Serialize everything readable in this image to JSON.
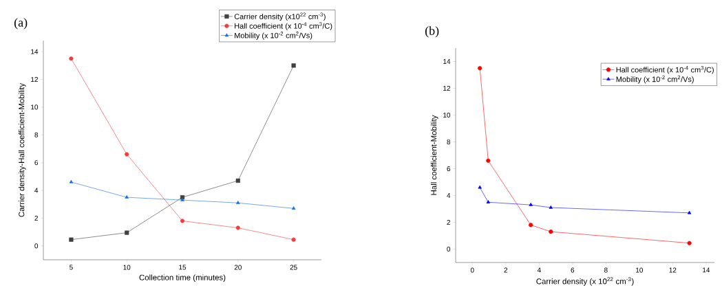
{
  "chart_data": [
    {
      "type": "line",
      "title": "(a)",
      "xlabel": "Collection time (minutes)",
      "ylabel": "Carrier density-Hall coefficient-Mobility",
      "x": [
        5,
        10,
        15,
        20,
        25
      ],
      "series": [
        {
          "name": "Carrier density (x10$^{22}$ cm$^{-3}$)",
          "color": "#404040",
          "marker": "square",
          "values": [
            0.45,
            0.95,
            3.5,
            4.7,
            13
          ]
        },
        {
          "name": "Hall coefficient (x 10$^{-4}$ cm$^{3}$/C)",
          "color": "#f03c3c",
          "marker": "circle",
          "values": [
            13.5,
            6.6,
            1.8,
            1.3,
            0.45
          ]
        },
        {
          "name": "Mobility (x 10$^{-2}$ cm$^{2}$/Vs)",
          "color": "#1a6fe0",
          "marker": "triangle",
          "values": [
            4.6,
            3.5,
            3.3,
            3.1,
            2.7
          ]
        }
      ],
      "xlim": [
        2.5,
        27.5
      ],
      "xticks": [
        5,
        10,
        15,
        20,
        25
      ],
      "ylim": [
        -1,
        14.8
      ],
      "yticks": [
        0,
        2,
        4,
        6,
        8,
        10,
        12,
        14
      ],
      "legend": "top right",
      "grid": false,
      "line_style": "solid"
    },
    {
      "type": "line",
      "title": "(b)",
      "xlabel": "Carrier density (x 10$^{22}$ cm$^{-3}$)",
      "ylabel": "Hall coefficient-Mobility",
      "series": [
        {
          "name": "Hall coefficient (x 10$^{-4}$ cm$^{3}$/C)",
          "color": "#ff0000",
          "marker": "circle",
          "x": [
            0.45,
            0.95,
            3.5,
            4.7,
            13
          ],
          "values": [
            13.5,
            6.6,
            1.8,
            1.3,
            0.45
          ]
        },
        {
          "name": "Mobility (x 10$^{-2}$ cm$^{2}$/Vs)",
          "color": "#0000ff",
          "marker": "triangle",
          "x": [
            0.45,
            0.95,
            3.5,
            4.7,
            13
          ],
          "values": [
            4.6,
            3.5,
            3.3,
            3.1,
            2.7
          ]
        }
      ],
      "xlim": [
        -1,
        14.5
      ],
      "xticks": [
        0,
        2,
        4,
        6,
        8,
        10,
        12,
        14
      ],
      "ylim": [
        -1,
        15
      ],
      "yticks": [
        0,
        2,
        4,
        6,
        8,
        10,
        12,
        14
      ],
      "legend": "top right",
      "grid": false,
      "line_style": "solid"
    }
  ]
}
